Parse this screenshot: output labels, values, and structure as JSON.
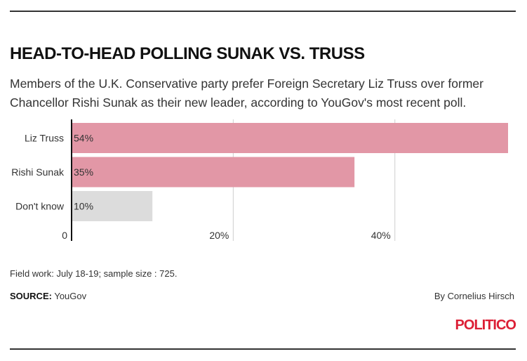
{
  "header": {
    "title": "HEAD-TO-HEAD POLLING SUNAK VS. TRUSS",
    "subtitle": "Members of the U.K. Conservative party prefer Foreign Secretary Liz Truss over former Chancellor Rishi Sunak as their new leader, according to YouGov's most recent poll."
  },
  "chart_data": {
    "type": "bar",
    "orientation": "horizontal",
    "categories": [
      "Liz Truss",
      "Rishi Sunak",
      "Don't know"
    ],
    "values": [
      54,
      35,
      10
    ],
    "value_labels": [
      "54%",
      "35%",
      "10%"
    ],
    "bar_colors": [
      "#e297a6",
      "#e297a6",
      "#dcdcdc"
    ],
    "xlim": [
      0,
      54
    ],
    "x_ticks": [
      0,
      20,
      40
    ],
    "x_tick_labels": [
      "0",
      "20%",
      "40%"
    ],
    "grid": true
  },
  "footer": {
    "note": "Field work: July 18-19; sample size : 725.",
    "source_label": "SOURCE:",
    "source_value": "YouGov",
    "byline": "By Cornelius Hirsch",
    "logo": "POLITICO"
  },
  "colors": {
    "accent": "#dc1e35",
    "bar": "#e297a6",
    "bar_muted": "#dcdcdc"
  }
}
